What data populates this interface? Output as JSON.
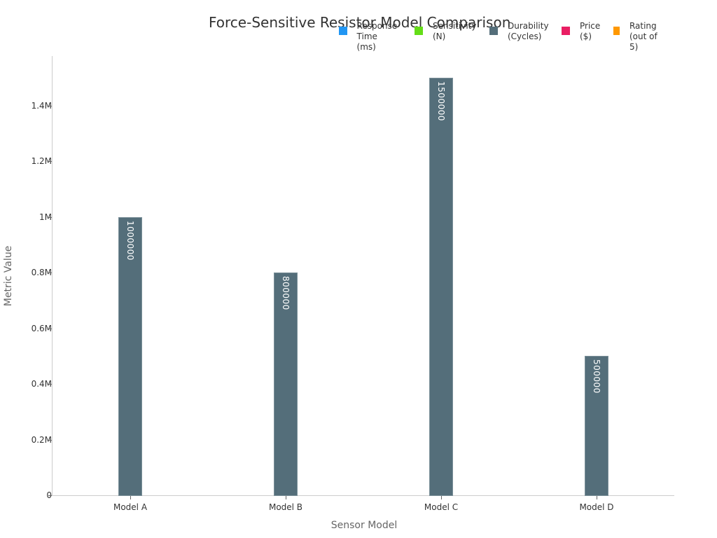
{
  "chart_data": {
    "type": "bar",
    "title": "Force-Sensitive Resistor Model Comparison",
    "xlabel": "Sensor Model",
    "ylabel": "Metric Value",
    "categories": [
      "Model A",
      "Model B",
      "Model C",
      "Model D"
    ],
    "series": [
      {
        "name": "Response Time (ms)",
        "color": "#2196F3",
        "values": [
          null,
          null,
          null,
          null
        ]
      },
      {
        "name": "Sensitivity (N)",
        "color": "#64DD17",
        "values": [
          null,
          null,
          null,
          null
        ]
      },
      {
        "name": "Durability (Cycles)",
        "color": "#546E7A",
        "values": [
          1000000,
          800000,
          1500000,
          500000
        ]
      },
      {
        "name": "Price ($)",
        "color": "#E91E63",
        "values": [
          null,
          null,
          null,
          null
        ]
      },
      {
        "name": "Rating (out of 5)",
        "color": "#FF9800",
        "values": [
          null,
          null,
          null,
          null
        ]
      }
    ],
    "ylim": [
      0,
      1575000
    ],
    "yticks": [
      "0",
      "0.2M",
      "0.4M",
      "0.6M",
      "0.8M",
      "1M",
      "1.2M",
      "1.4M"
    ],
    "ytick_values": [
      0,
      200000,
      400000,
      600000,
      800000,
      1000000,
      1200000,
      1400000
    ],
    "data_labels": [
      "1000000",
      "800000",
      "1500000",
      "500000"
    ],
    "grid": false,
    "legend_position": "top-right"
  },
  "legend": [
    {
      "label": "Response\nTime (ms)",
      "color": "#2196F3"
    },
    {
      "label": "Sensitivity\n(N)",
      "color": "#64DD17"
    },
    {
      "label": "Durability\n(Cycles)",
      "color": "#546E7A"
    },
    {
      "label": "Price\n($)",
      "color": "#E91E63"
    },
    {
      "label": "Rating\n(out of 5)",
      "color": "#FF9800"
    }
  ]
}
